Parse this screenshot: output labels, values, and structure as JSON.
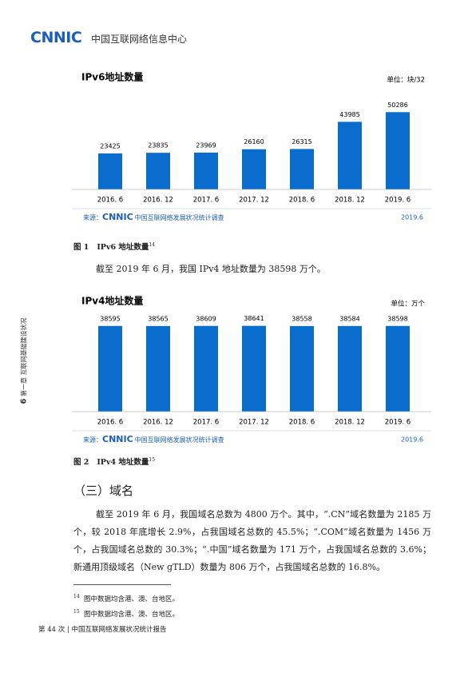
{
  "header": {
    "logo": "CNNIC",
    "org": "中国互联网络信息中心"
  },
  "side": {
    "page_number": "6",
    "chapter": "第一章 互联网基础建设状况"
  },
  "chart_data": [
    {
      "type": "bar",
      "title": "IPv6地址数量",
      "unit": "单位：块/32",
      "categories": [
        "2016. 6",
        "2016. 12",
        "2017. 6",
        "2017. 12",
        "2018. 6",
        "2018. 12",
        "2019. 6"
      ],
      "values": [
        23425,
        23835,
        23969,
        26160,
        26315,
        43985,
        50286
      ],
      "color": "#0a6ccc",
      "ylim": [
        0,
        65000
      ],
      "source_prefix": "来源：",
      "source_logo": "CNNIC",
      "source_name": "中国互联网络发展状况统计调查",
      "source_date": "2019.6"
    },
    {
      "type": "bar",
      "title": "IPv4地址数量",
      "unit": "单位：万个",
      "categories": [
        "2016. 6",
        "2016. 12",
        "2017. 6",
        "2017. 12",
        "2018. 6",
        "2018. 12",
        "2019. 6"
      ],
      "values": [
        38595,
        38565,
        38609,
        38641,
        38558,
        38584,
        38598
      ],
      "color": "#0a6ccc",
      "ylim": [
        0,
        45000
      ],
      "source_prefix": "来源：",
      "source_logo": "CNNIC",
      "source_name": "中国互联网络发展状况统计调查",
      "source_date": "2019.6"
    }
  ],
  "captions": [
    {
      "label": "图 1",
      "text": "IPv6 地址数量",
      "note": "14"
    },
    {
      "label": "图 2",
      "text": "IPv4 地址数量",
      "note": "15"
    }
  ],
  "body": {
    "p1": "截至 2019 年 6 月，我国 IPv4 地址数量为 38598 万个。",
    "heading": "（三）域名",
    "p2": "截至 2019 年 6 月，我国域名总数为 4800 万个。其中，“.CN”域名数量为 2185 万个，较 2018 年底增长 2.9%，占我国域名总数的 45.5%；“.COM”域名数量为 1456 万个，占我国域名总数的 30.3%；“.中国”域名数量为 171 万个，占我国域名总数的 3.6%；新通用顶级域名（New gTLD）数量为 806 万个，占我国域名总数的 16.8%。"
  },
  "footnotes": [
    {
      "mark": "14",
      "text": "图中数据均含港、澳、台地区。"
    },
    {
      "mark": "15",
      "text": "图中数据均含港、澳、台地区。"
    }
  ],
  "footer": "第 44 次 | 中国互联网络发展状况统计报告"
}
